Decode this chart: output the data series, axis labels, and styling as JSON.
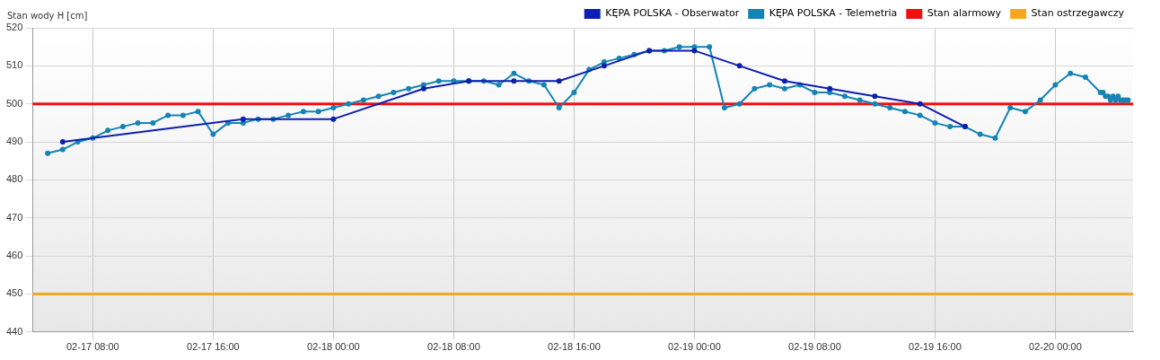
{
  "chart_data": {
    "type": "line",
    "ylabel": "Stan wody H [cm]",
    "xlim": [
      "--02-17T04:00",
      "--02-20T05:10"
    ],
    "xticks": [
      {
        "value": "--02-17T08:00",
        "label": "02-17 08:00"
      },
      {
        "value": "--02-17T16:00",
        "label": "02-17 16:00"
      },
      {
        "value": "--02-18T00:00",
        "label": "02-18 00:00"
      },
      {
        "value": "--02-18T08:00",
        "label": "02-18 08:00"
      },
      {
        "value": "--02-18T16:00",
        "label": "02-18 16:00"
      },
      {
        "value": "--02-19T00:00",
        "label": "02-19 00:00"
      },
      {
        "value": "--02-19T08:00",
        "label": "02-19 08:00"
      },
      {
        "value": "--02-19T16:00",
        "label": "02-19 16:00"
      },
      {
        "value": "--02-20T00:00",
        "label": "02-20 00:00"
      }
    ],
    "ylim": [
      440,
      520
    ],
    "yticks": [
      440,
      450,
      460,
      470,
      480,
      490,
      500,
      510,
      520
    ],
    "grid": true,
    "legend": "top right",
    "marker": "circle",
    "line_style": "solid",
    "series": [
      {
        "name": "KĘPA POLSKA - Obserwator",
        "color": "#0c1fb0",
        "x": [
          "--02-17T06:00",
          "--02-17T18:00",
          "--02-18T00:00",
          "--02-18T06:00",
          "--02-18T09:00",
          "--02-18T12:00",
          "--02-18T15:00",
          "--02-18T18:00",
          "--02-18T21:00",
          "--02-19T00:00",
          "--02-19T03:00",
          "--02-19T06:00",
          "--02-19T09:00",
          "--02-19T12:00",
          "--02-19T15:00",
          "--02-19T18:00"
        ],
        "values": [
          490,
          496,
          496,
          504,
          506,
          506,
          506,
          510,
          514,
          514,
          510,
          506,
          504,
          502,
          500,
          494
        ]
      },
      {
        "name": "KĘPA POLSKA - Telemetria",
        "color": "#1584b5",
        "x": [
          "--02-17T05:00",
          "--02-17T06:00",
          "--02-17T07:00",
          "--02-17T08:00",
          "--02-17T09:00",
          "--02-17T10:00",
          "--02-17T11:00",
          "--02-17T12:00",
          "--02-17T13:00",
          "--02-17T14:00",
          "--02-17T15:00",
          "--02-17T16:00",
          "--02-17T17:00",
          "--02-17T18:00",
          "--02-17T19:00",
          "--02-17T20:00",
          "--02-17T21:00",
          "--02-17T22:00",
          "--02-17T23:00",
          "--02-18T00:00",
          "--02-18T01:00",
          "--02-18T02:00",
          "--02-18T03:00",
          "--02-18T04:00",
          "--02-18T05:00",
          "--02-18T06:00",
          "--02-18T07:00",
          "--02-18T08:00",
          "--02-18T09:00",
          "--02-18T10:00",
          "--02-18T11:00",
          "--02-18T12:00",
          "--02-18T13:00",
          "--02-18T14:00",
          "--02-18T15:00",
          "--02-18T16:00",
          "--02-18T17:00",
          "--02-18T18:00",
          "--02-18T19:00",
          "--02-18T20:00",
          "--02-18T21:00",
          "--02-18T22:00",
          "--02-18T23:00",
          "--02-19T00:00",
          "--02-19T01:00",
          "--02-19T02:00",
          "--02-19T03:00",
          "--02-19T04:00",
          "--02-19T05:00",
          "--02-19T06:00",
          "--02-19T07:00",
          "--02-19T08:00",
          "--02-19T09:00",
          "--02-19T10:00",
          "--02-19T11:00",
          "--02-19T12:00",
          "--02-19T13:00",
          "--02-19T14:00",
          "--02-19T15:00",
          "--02-19T16:00",
          "--02-19T17:00",
          "--02-19T18:00",
          "--02-19T19:00",
          "--02-19T20:00",
          "--02-19T21:00",
          "--02-19T22:00",
          "--02-19T23:00",
          "--02-20T00:00",
          "--02-20T01:00",
          "--02-20T02:00",
          "--02-20T03:00",
          "--02-20T03:10",
          "--02-20T03:20",
          "--02-20T03:30",
          "--02-20T03:40",
          "--02-20T03:50",
          "--02-20T04:00",
          "--02-20T04:10",
          "--02-20T04:20",
          "--02-20T04:30",
          "--02-20T04:40",
          "--02-20T04:50"
        ],
        "values": [
          487,
          488,
          490,
          491,
          493,
          494,
          495,
          495,
          497,
          497,
          498,
          492,
          495,
          495,
          496,
          496,
          497,
          498,
          498,
          499,
          500,
          501,
          502,
          503,
          504,
          505,
          506,
          506,
          506,
          506,
          505,
          508,
          506,
          505,
          499,
          503,
          509,
          511,
          512,
          513,
          514,
          514,
          515,
          515,
          515,
          499,
          500,
          504,
          505,
          504,
          505,
          503,
          503,
          502,
          501,
          500,
          499,
          498,
          497,
          495,
          494,
          494,
          492,
          491,
          499,
          498,
          501,
          505,
          508,
          507,
          503,
          503,
          502,
          502,
          501,
          502,
          501,
          502,
          501,
          501,
          501,
          501
        ]
      }
    ],
    "ref_lines": [
      {
        "axis": "y",
        "value": 500,
        "label": "Stan alarmowy",
        "color": "#f01010"
      },
      {
        "axis": "y",
        "value": 450,
        "label": "Stan ostrzegawczy",
        "color": "#f5a81c"
      }
    ]
  }
}
